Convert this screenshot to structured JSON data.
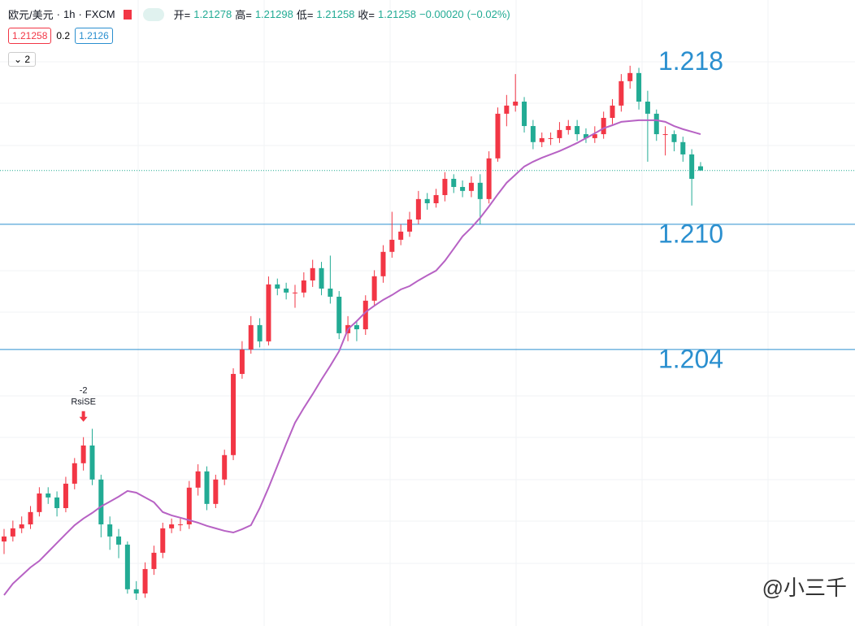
{
  "header": {
    "symbol": "欧元/美元",
    "interval": "1h",
    "source": "FXCM",
    "open_label": "开=",
    "open": 1.21278,
    "high_label": "高=",
    "high": 1.21298,
    "low_label": "低=",
    "low": 1.21258,
    "close_label": "收=",
    "close": 1.21258,
    "change": "−0.00020",
    "change_pct": "(−0.02%)",
    "bid": 1.21258,
    "spread": 0.2,
    "ask": 1.2126,
    "indicator_count": 2
  },
  "chart_data": {
    "type": "candlestick",
    "color_up": "#f23645",
    "color_down": "#22ab94",
    "open": [
      1.1948,
      1.19504,
      1.19543,
      1.19562,
      1.19621,
      1.1971,
      1.19691,
      1.1964,
      1.19757,
      1.19855,
      1.1994,
      1.19777,
      1.19562,
      1.19504,
      1.19465,
      1.19251,
      1.19231,
      1.19348,
      1.19426,
      1.19543,
      1.19562,
      1.19562,
      1.19738,
      1.19816,
      1.1966,
      1.19777,
      1.19894,
      1.20283,
      1.204,
      1.20517,
      1.20439,
      1.20712,
      1.20692,
      1.20673,
      1.20673,
      1.20731,
      1.2079,
      1.20692,
      1.20653,
      1.20478,
      1.20517,
      1.20497,
      1.20634,
      1.20751,
      1.20868,
      1.20926,
      1.20965,
      1.21023,
      1.21121,
      1.21101,
      1.2114,
      1.21218,
      1.21179,
      1.2116,
      1.21199,
      1.21121,
      1.21316,
      1.2153,
      1.21569,
      1.21588,
      1.21471,
      1.21394,
      1.21413,
      1.21413,
      1.21452,
      1.21471,
      1.21432,
      1.21413,
      1.21432,
      1.2151,
      1.21569,
      1.21686,
      1.21725,
      1.21588,
      1.2153,
      1.21432,
      1.21432,
      1.21394,
      1.21335,
      1.21278
    ],
    "high": [
      1.1954,
      1.1958,
      1.196,
      1.1965,
      1.1974,
      1.1974,
      1.1972,
      1.1979,
      1.1988,
      1.1998,
      1.2002,
      1.198,
      1.196,
      1.1954,
      1.1948,
      1.1929,
      1.1938,
      1.1946,
      1.1957,
      1.1959,
      1.1959,
      1.1977,
      1.1985,
      1.1984,
      1.198,
      1.1992,
      1.2031,
      1.2044,
      1.2056,
      1.2055,
      1.2075,
      1.2074,
      1.2072,
      1.2071,
      1.2077,
      1.2083,
      1.2082,
      1.2085,
      1.2068,
      1.2056,
      1.2054,
      1.2066,
      1.2078,
      1.209,
      1.2106,
      1.21,
      1.2106,
      1.2116,
      1.2115,
      1.2117,
      1.2125,
      1.2124,
      1.2121,
      1.2123,
      1.2124,
      1.2135,
      1.2156,
      1.2162,
      1.2172,
      1.2161,
      1.215,
      1.2144,
      1.2144,
      1.2149,
      1.215,
      1.215,
      1.2146,
      1.2147,
      1.2154,
      1.216,
      1.2172,
      1.2176,
      1.2175,
      1.2164,
      1.2155,
      1.2147,
      1.2145,
      1.2142,
      1.2136,
      1.21298
    ],
    "low": [
      1.1942,
      1.1948,
      1.1952,
      1.1954,
      1.196,
      1.1966,
      1.196,
      1.1962,
      1.1973,
      1.1982,
      1.1975,
      1.195,
      1.1944,
      1.194,
      1.1923,
      1.192,
      1.1921,
      1.1932,
      1.194,
      1.1952,
      1.1953,
      1.1954,
      1.197,
      1.1963,
      1.1964,
      1.1975,
      1.1987,
      1.2026,
      1.2038,
      1.2041,
      1.2042,
      1.2066,
      1.2064,
      1.206,
      1.2065,
      1.207,
      1.2066,
      1.2062,
      1.2045,
      1.2044,
      1.2044,
      1.2047,
      1.2061,
      1.2072,
      1.2084,
      1.209,
      1.2094,
      1.21,
      1.2107,
      1.2108,
      1.2111,
      1.2115,
      1.2113,
      1.2113,
      1.21,
      1.211,
      1.213,
      1.2147,
      1.2154,
      1.2144,
      1.2136,
      1.2137,
      1.2138,
      1.2139,
      1.2143,
      1.214,
      1.2139,
      1.2139,
      1.2141,
      1.2148,
      1.2154,
      1.2165,
      1.2155,
      1.213,
      1.214,
      1.2133,
      1.2135,
      1.213,
      1.2109,
      1.21258
    ],
    "close": [
      1.19504,
      1.19543,
      1.19562,
      1.19621,
      1.1971,
      1.19691,
      1.1964,
      1.19757,
      1.19855,
      1.1994,
      1.19777,
      1.19562,
      1.19504,
      1.19465,
      1.19251,
      1.19231,
      1.19348,
      1.19426,
      1.19543,
      1.19562,
      1.19562,
      1.19738,
      1.19816,
      1.1966,
      1.19777,
      1.19894,
      1.20283,
      1.204,
      1.20517,
      1.20439,
      1.20712,
      1.20692,
      1.20673,
      1.20673,
      1.20731,
      1.2079,
      1.20692,
      1.20653,
      1.20478,
      1.20517,
      1.20497,
      1.20634,
      1.20751,
      1.20868,
      1.20926,
      1.20965,
      1.21023,
      1.21121,
      1.21101,
      1.2114,
      1.21218,
      1.21179,
      1.2116,
      1.21199,
      1.21121,
      1.21316,
      1.2153,
      1.21569,
      1.21588,
      1.21471,
      1.21394,
      1.21413,
      1.21413,
      1.21452,
      1.21471,
      1.21432,
      1.21413,
      1.21432,
      1.2151,
      1.21569,
      1.21686,
      1.21725,
      1.21588,
      1.2153,
      1.21432,
      1.21432,
      1.21394,
      1.21335,
      1.21218,
      1.21258
    ],
    "ma": {
      "color": "#b762c4",
      "values": [
        1.19223,
        1.19278,
        1.19317,
        1.19356,
        1.19387,
        1.1943,
        1.19473,
        1.19516,
        1.19558,
        1.1959,
        1.19617,
        1.19648,
        1.19671,
        1.19695,
        1.19722,
        1.19714,
        1.19691,
        1.19668,
        1.19621,
        1.19605,
        1.19594,
        1.19582,
        1.1957,
        1.19555,
        1.19543,
        1.19531,
        1.19523,
        1.19539,
        1.19558,
        1.1964,
        1.19738,
        1.19843,
        1.19948,
        1.20049,
        1.2012,
        1.20186,
        1.20256,
        1.20322,
        1.20392,
        1.20497,
        1.20536,
        1.20579,
        1.2061,
        1.20638,
        1.20661,
        1.20688,
        1.20704,
        1.20731,
        1.20755,
        1.20778,
        1.20825,
        1.20883,
        1.20942,
        1.20984,
        1.21031,
        1.21086,
        1.21144,
        1.21199,
        1.21238,
        1.21277,
        1.213,
        1.21319,
        1.21335,
        1.21351,
        1.2137,
        1.2139,
        1.21413,
        1.21436,
        1.2146,
        1.21475,
        1.21491,
        1.21495,
        1.21499,
        1.21499,
        1.21499,
        1.21491,
        1.21471,
        1.21456,
        1.21444,
        1.21432
      ]
    },
    "ylim": [
      1.19075,
      1.22075
    ],
    "levels": [
      {
        "value": 1.218,
        "label": "1.218",
        "line": false
      },
      {
        "value": 1.21,
        "label": "1.210",
        "line": true
      },
      {
        "value": 1.204,
        "label": "1.204",
        "line": true
      }
    ],
    "level_color": "#2a8fcf",
    "last_price": 1.21258,
    "signal": {
      "index": 9,
      "count": "-2",
      "name": "RsiSE"
    }
  },
  "watermark": "@小三千"
}
